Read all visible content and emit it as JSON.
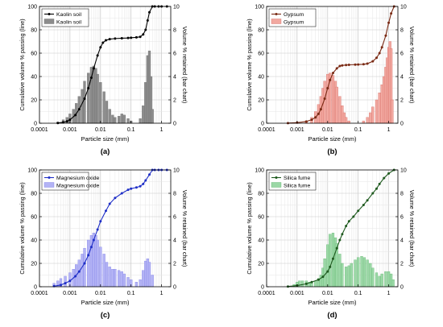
{
  "figure": {
    "panels": [
      "(a)",
      "(b)",
      "(c)",
      "(d)"
    ]
  },
  "chart_data": [
    {
      "panel_label": "(a)",
      "type": "bar",
      "xlabel": "Particle size (mm)",
      "ylabel_left": "Cumulative volume % passing (line)",
      "ylabel_right": "Volume % retained (bar chart)",
      "x_scale": "log",
      "xlim": [
        0.0001,
        2
      ],
      "x_ticks": [
        "0.0001",
        "0.001",
        "0.01",
        "0.1",
        "1"
      ],
      "ylim_left": [
        0,
        100
      ],
      "y_ticks_left": [
        "0",
        "20",
        "40",
        "60",
        "80",
        "100"
      ],
      "ylim_right": [
        0,
        10
      ],
      "y_ticks_right": [
        "0",
        "2",
        "4",
        "6",
        "8",
        "10"
      ],
      "grid": true,
      "legend_position": "top-left",
      "colors": {
        "line": "#000000",
        "bar": "#8c8c8c",
        "bar_stroke": "#6e6e6e"
      },
      "series": [
        {
          "name": "Kaolin soil",
          "kind": "line",
          "axis": "left",
          "x": [
            0.0004,
            0.0006,
            0.0008,
            0.001,
            0.0015,
            0.002,
            0.003,
            0.004,
            0.005,
            0.006,
            0.008,
            0.01,
            0.012,
            0.015,
            0.02,
            0.03,
            0.05,
            0.08,
            0.1,
            0.15,
            0.2,
            0.25,
            0.3,
            0.35,
            0.4,
            0.5,
            0.6,
            0.8,
            1.0,
            1.5
          ],
          "values": [
            0.2,
            0.8,
            1.6,
            3,
            7,
            12,
            21,
            30,
            39,
            47,
            58,
            65,
            69,
            71,
            72,
            72.5,
            72.8,
            73,
            73.2,
            73.5,
            74,
            76,
            80,
            88,
            95,
            100,
            100,
            100,
            100,
            100
          ]
        },
        {
          "name": "Kaolin soil",
          "kind": "bar",
          "axis": "right",
          "x": [
            0.0004,
            0.0006,
            0.0008,
            0.001,
            0.0013,
            0.0016,
            0.002,
            0.0025,
            0.003,
            0.004,
            0.005,
            0.006,
            0.007,
            0.008,
            0.01,
            0.013,
            0.016,
            0.02,
            0.025,
            0.03,
            0.04,
            0.05,
            0.06,
            0.08,
            0.1,
            0.2,
            0.25,
            0.3,
            0.35,
            0.4,
            0.45,
            0.5
          ],
          "values": [
            0.1,
            0.3,
            0.5,
            0.8,
            1.2,
            1.7,
            2.3,
            2.9,
            3.6,
            4.3,
            4.8,
            4.9,
            4.7,
            4.2,
            3.5,
            2.7,
            1.9,
            1.2,
            0.7,
            0.5,
            0.6,
            0.8,
            0.7,
            0.4,
            0.2,
            0.4,
            1.5,
            3.5,
            5.8,
            6.2,
            4.0,
            1.2
          ]
        }
      ]
    },
    {
      "panel_label": "(b)",
      "type": "bar",
      "xlabel": "Particle size (mm)",
      "ylabel_left": "Cumulative volume % passing (line)",
      "ylabel_right": "Volume % retained (bar chart)",
      "x_scale": "log",
      "xlim": [
        0.0001,
        2
      ],
      "x_ticks": [
        "0.0001",
        "0.001",
        "0.01",
        "0.1",
        "1"
      ],
      "ylim_left": [
        0,
        100
      ],
      "y_ticks_left": [
        "0",
        "20",
        "40",
        "60",
        "80",
        "100"
      ],
      "ylim_right": [
        0,
        10
      ],
      "y_ticks_right": [
        "0",
        "2",
        "4",
        "6",
        "8",
        "10"
      ],
      "grid": true,
      "legend_position": "top-left",
      "colors": {
        "line": "#7a2a14",
        "bar": "#f2a8a0",
        "bar_stroke": "#d46a62"
      },
      "series": [
        {
          "name": "Gypsum",
          "kind": "line",
          "axis": "left",
          "x": [
            0.0005,
            0.001,
            0.002,
            0.003,
            0.004,
            0.005,
            0.006,
            0.008,
            0.01,
            0.012,
            0.015,
            0.02,
            0.025,
            0.03,
            0.04,
            0.05,
            0.08,
            0.1,
            0.15,
            0.2,
            0.3,
            0.4,
            0.5,
            0.6,
            0.8,
            1.0,
            1.2,
            1.5
          ],
          "values": [
            0.1,
            0.5,
            1.5,
            3,
            5,
            8,
            12,
            21,
            30,
            37,
            43,
            47,
            49,
            49.5,
            49.8,
            50,
            50.2,
            50.3,
            50.5,
            51,
            53,
            56,
            60,
            65,
            75,
            86,
            94,
            100
          ]
        },
        {
          "name": "Gypsum",
          "kind": "bar",
          "axis": "right",
          "x": [
            0.002,
            0.003,
            0.004,
            0.005,
            0.006,
            0.007,
            0.008,
            0.01,
            0.012,
            0.015,
            0.018,
            0.02,
            0.025,
            0.03,
            0.035,
            0.04,
            0.05,
            0.15,
            0.2,
            0.25,
            0.3,
            0.4,
            0.5,
            0.6,
            0.7,
            0.8,
            0.9,
            1.0,
            1.1,
            1.2,
            1.3
          ],
          "values": [
            0.2,
            0.5,
            1.0,
            1.6,
            2.3,
            3.0,
            3.6,
            4.2,
            4.3,
            4.1,
            3.6,
            3.1,
            2.3,
            1.5,
            0.9,
            0.5,
            0.2,
            0.2,
            0.5,
            0.9,
            1.4,
            2.0,
            2.6,
            3.3,
            4.0,
            4.8,
            5.6,
            6.5,
            7.0,
            6.4,
            2.0
          ]
        }
      ]
    },
    {
      "panel_label": "(c)",
      "type": "bar",
      "xlabel": "Particle size (mm)",
      "ylabel_left": "Cumulative volume % passing (line)",
      "ylabel_right": "Volume % retained (bar chart)",
      "x_scale": "log",
      "xlim": [
        0.0001,
        2
      ],
      "x_ticks": [
        "0.0001",
        "0.001",
        "0.01",
        "0.1",
        "1"
      ],
      "ylim_left": [
        0,
        100
      ],
      "y_ticks_left": [
        "0",
        "20",
        "40",
        "60",
        "80",
        "100"
      ],
      "ylim_right": [
        0,
        10
      ],
      "y_ticks_right": [
        "0",
        "2",
        "4",
        "6",
        "8",
        "10"
      ],
      "grid": true,
      "legend_position": "top-left",
      "colors": {
        "line": "#1f2fc7",
        "bar": "#b3b3f5",
        "bar_stroke": "#7f7fe6"
      },
      "series": [
        {
          "name": "Magnesium oxide",
          "kind": "line",
          "axis": "left",
          "x": [
            0.0003,
            0.0005,
            0.0007,
            0.001,
            0.0015,
            0.002,
            0.003,
            0.004,
            0.005,
            0.006,
            0.008,
            0.01,
            0.015,
            0.02,
            0.03,
            0.05,
            0.08,
            0.1,
            0.15,
            0.2,
            0.25,
            0.3,
            0.4,
            0.5,
            0.6,
            0.8,
            1.0,
            1.5
          ],
          "values": [
            0.5,
            1.5,
            3,
            5,
            9,
            13,
            20,
            27,
            34,
            40,
            49,
            56,
            65,
            71,
            76,
            80,
            83,
            84,
            85,
            86,
            88,
            91,
            96,
            100,
            100,
            100,
            100,
            100
          ]
        },
        {
          "name": "Magnesium oxide",
          "kind": "bar",
          "axis": "right",
          "x": [
            0.0003,
            0.0004,
            0.0005,
            0.0007,
            0.001,
            0.0013,
            0.0016,
            0.002,
            0.0025,
            0.003,
            0.004,
            0.005,
            0.006,
            0.007,
            0.008,
            0.01,
            0.013,
            0.016,
            0.02,
            0.025,
            0.03,
            0.04,
            0.05,
            0.06,
            0.08,
            0.1,
            0.15,
            0.2,
            0.25,
            0.3,
            0.35,
            0.4,
            0.5
          ],
          "values": [
            0.3,
            0.5,
            0.7,
            0.9,
            1.2,
            1.5,
            1.9,
            2.3,
            2.8,
            3.3,
            4.0,
            4.4,
            4.6,
            4.4,
            4.0,
            3.4,
            2.8,
            2.1,
            1.7,
            1.5,
            1.5,
            1.4,
            1.3,
            1.1,
            0.8,
            0.6,
            0.4,
            0.6,
            1.4,
            2.2,
            2.4,
            2.1,
            1.0
          ]
        }
      ]
    },
    {
      "panel_label": "(d)",
      "type": "bar",
      "xlabel": "Particle size (mm)",
      "ylabel_left": "Cumulative volume % passing (line)",
      "ylabel_right": "Volume % retained (bar chart)",
      "x_scale": "log",
      "xlim": [
        0.0001,
        2
      ],
      "x_ticks": [
        "0.0001",
        "0.001",
        "0.01",
        "0.1",
        "1"
      ],
      "ylim_left": [
        0,
        100
      ],
      "y_ticks_left": [
        "0",
        "20",
        "40",
        "60",
        "80",
        "100"
      ],
      "ylim_right": [
        0,
        10
      ],
      "y_ticks_right": [
        "0",
        "2",
        "4",
        "6",
        "8",
        "10"
      ],
      "grid": true,
      "legend_position": "top-left",
      "colors": {
        "line": "#1f5a1f",
        "bar": "#9bd8a6",
        "bar_stroke": "#5fb56e"
      },
      "series": [
        {
          "name": "Silica fume",
          "kind": "line",
          "axis": "left",
          "x": [
            0.0005,
            0.001,
            0.002,
            0.003,
            0.005,
            0.007,
            0.01,
            0.012,
            0.015,
            0.02,
            0.025,
            0.03,
            0.04,
            0.05,
            0.07,
            0.1,
            0.15,
            0.2,
            0.3,
            0.4,
            0.5,
            0.7,
            1.0,
            1.5
          ],
          "values": [
            0.2,
            1,
            2.5,
            4,
            6,
            8.5,
            13,
            17,
            24,
            33,
            40,
            45,
            52,
            56,
            60,
            65,
            70,
            74,
            80,
            84,
            88,
            93,
            97,
            100
          ]
        },
        {
          "name": "Silica fume",
          "kind": "bar",
          "axis": "right",
          "x": [
            0.0008,
            0.001,
            0.0012,
            0.0015,
            0.002,
            0.0025,
            0.003,
            0.004,
            0.005,
            0.006,
            0.007,
            0.008,
            0.01,
            0.012,
            0.015,
            0.018,
            0.02,
            0.025,
            0.03,
            0.04,
            0.05,
            0.06,
            0.08,
            0.1,
            0.13,
            0.16,
            0.2,
            0.25,
            0.3,
            0.4,
            0.5,
            0.6,
            0.8,
            1.0,
            1.2,
            1.4
          ],
          "values": [
            0.2,
            0.4,
            0.5,
            0.5,
            0.5,
            0.4,
            0.4,
            0.5,
            0.7,
            1.0,
            1.6,
            2.4,
            3.6,
            4.5,
            4.6,
            4.2,
            3.7,
            2.8,
            2.0,
            1.7,
            1.8,
            2.0,
            2.3,
            2.5,
            2.6,
            2.5,
            2.3,
            2.0,
            1.6,
            1.2,
            0.9,
            1.1,
            1.3,
            1.3,
            1.1,
            0.6
          ]
        }
      ]
    }
  ]
}
